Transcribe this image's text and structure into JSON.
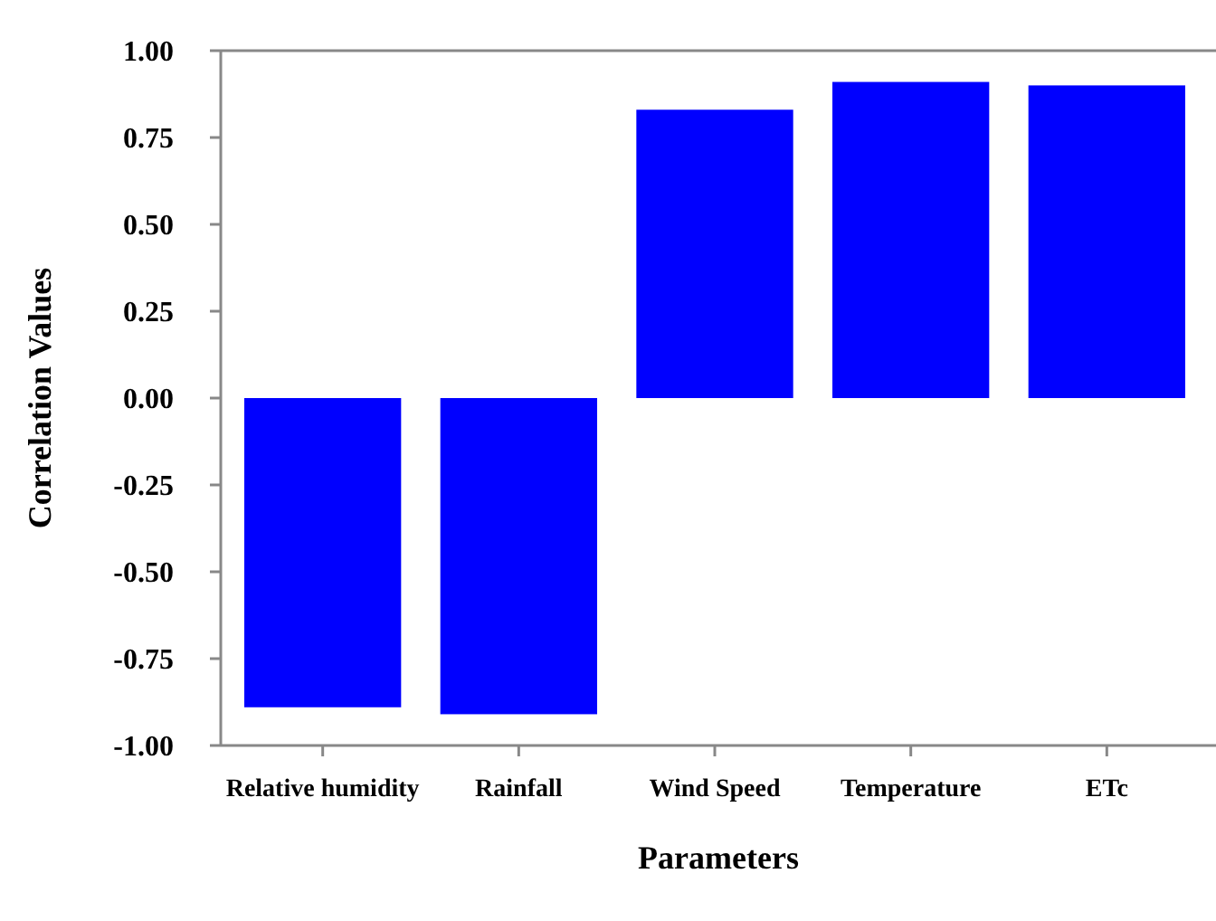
{
  "chart_data": {
    "type": "bar",
    "xlabel": "Parameters",
    "ylabel": "Correlation Values",
    "categories": [
      "Relative humidity",
      "Rainfall",
      "Wind Speed",
      "Temperature",
      "ETc"
    ],
    "values": [
      -0.89,
      -0.91,
      0.83,
      0.91,
      0.9
    ],
    "color": "#0000ff",
    "ylim": [
      -1,
      1
    ],
    "yticks": [
      {
        "value": -1,
        "label": "-1.00"
      },
      {
        "value": -0.75,
        "label": "-0.75"
      },
      {
        "value": -0.5,
        "label": "-0.50"
      },
      {
        "value": -0.25,
        "label": "-0.25"
      },
      {
        "value": 0,
        "label": "0.00"
      },
      {
        "value": 0.25,
        "label": "0.25"
      },
      {
        "value": 0.5,
        "label": "0.50"
      },
      {
        "value": 0.75,
        "label": "0.75"
      },
      {
        "value": 1,
        "label": "1.00"
      }
    ],
    "grid": false
  }
}
